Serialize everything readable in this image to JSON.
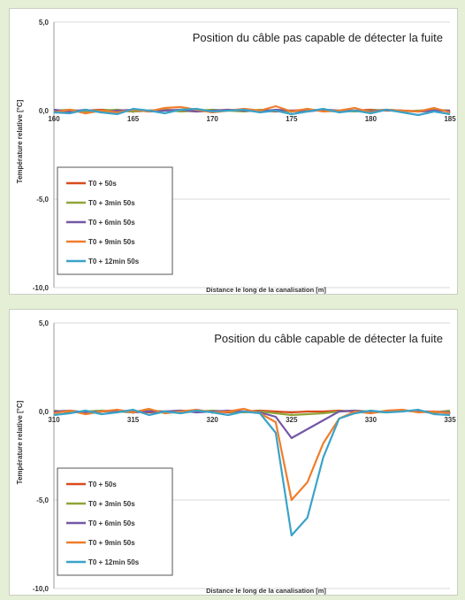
{
  "colors": {
    "background": "#e4efd6",
    "panel": "#ffffff",
    "grid": "#d9d9d9",
    "axis": "#9a9a9a",
    "series": [
      "#d84a1e",
      "#8fa53a",
      "#7457a6",
      "#f07d2c",
      "#3aa3c8"
    ]
  },
  "chart_data": [
    {
      "type": "line",
      "title": "Position du câble pas capable de détecter la fuite",
      "xlabel": "Distance  le long de la canalisation  [m]",
      "ylabel": "Température relative [°C]",
      "xlim": [
        160,
        185
      ],
      "ylim": [
        -10,
        5
      ],
      "x_ticks": [
        "160",
        "165",
        "170",
        "175",
        "180",
        "185"
      ],
      "y_ticks": [
        "5,0",
        "0,0",
        "-5,0",
        "-10,0"
      ],
      "x_tick_values": [
        160,
        165,
        170,
        175,
        180,
        185
      ],
      "y_tick_values": [
        5,
        0,
        -5,
        -10
      ],
      "grid": true,
      "legend_position": "bottom-left",
      "x": [
        160,
        161,
        162,
        163,
        164,
        165,
        166,
        167,
        168,
        169,
        170,
        171,
        172,
        173,
        174,
        175,
        176,
        177,
        178,
        179,
        180,
        181,
        182,
        183,
        184,
        185
      ],
      "series": [
        {
          "name": "T0 + 50s",
          "values": [
            0.0,
            -0.05,
            0.0,
            0.05,
            0.0,
            -0.05,
            0.0,
            0.05,
            0.0,
            -0.05,
            0.0,
            0.05,
            0.0,
            0.0,
            -0.05,
            0.0,
            0.05,
            0.0,
            -0.05,
            0.0,
            0.05,
            0.0,
            0.0,
            -0.05,
            0.0,
            0.0
          ]
        },
        {
          "name": "T0 + 3min 50s",
          "values": [
            0.0,
            0.05,
            -0.05,
            0.0,
            0.05,
            -0.05,
            0.0,
            0.05,
            -0.05,
            0.0,
            0.05,
            0.0,
            -0.05,
            0.05,
            0.0,
            -0.05,
            0.0,
            0.05,
            0.0,
            -0.05,
            0.0,
            0.05,
            -0.05,
            0.0,
            0.05,
            0.0
          ]
        },
        {
          "name": "T0 + 6min 50s",
          "values": [
            0.05,
            -0.05,
            0.05,
            -0.1,
            0.0,
            0.05,
            -0.05,
            0.0,
            0.05,
            -0.05,
            0.0,
            0.05,
            0.0,
            -0.05,
            0.05,
            0.0,
            -0.05,
            0.05,
            0.0,
            0.0,
            -0.05,
            0.05,
            0.0,
            -0.05,
            0.0,
            0.0
          ]
        },
        {
          "name": "T0 + 9min 50s",
          "values": [
            -0.1,
            0.05,
            -0.15,
            0.0,
            -0.1,
            0.05,
            -0.05,
            0.15,
            0.2,
            0.05,
            -0.1,
            0.0,
            0.1,
            0.0,
            0.25,
            -0.05,
            0.1,
            -0.05,
            0.0,
            0.15,
            -0.1,
            0.05,
            0.0,
            -0.05,
            0.15,
            -0.1
          ]
        },
        {
          "name": "T0 + 12min 50s",
          "values": [
            -0.1,
            -0.15,
            0.05,
            -0.1,
            -0.2,
            0.1,
            0.0,
            -0.15,
            0.05,
            0.1,
            -0.05,
            0.0,
            0.05,
            -0.1,
            0.0,
            -0.2,
            -0.05,
            0.1,
            -0.1,
            0.0,
            -0.15,
            0.05,
            -0.1,
            -0.25,
            -0.05,
            -0.2
          ]
        }
      ]
    },
    {
      "type": "line",
      "title": "Position du câble capable de détecter la fuite",
      "xlabel": "Distance  le long de la canalisation  [m]",
      "ylabel": "Température relative [°C]",
      "xlim": [
        310,
        335
      ],
      "ylim": [
        -10,
        5
      ],
      "x_ticks": [
        "310",
        "315",
        "320",
        "325",
        "330",
        "335"
      ],
      "y_ticks": [
        "5,0",
        "0,0",
        "-5,0",
        "-10,0"
      ],
      "x_tick_values": [
        310,
        315,
        320,
        325,
        330,
        335
      ],
      "y_tick_values": [
        5,
        0,
        -5,
        -10
      ],
      "grid": true,
      "legend_position": "bottom-left",
      "x": [
        310,
        311,
        312,
        313,
        314,
        315,
        316,
        317,
        318,
        319,
        320,
        321,
        322,
        323,
        324,
        325,
        326,
        327,
        328,
        329,
        330,
        331,
        332,
        333,
        334,
        335
      ],
      "series": [
        {
          "name": "T0 + 50s",
          "values": [
            0.0,
            0.0,
            -0.05,
            0.0,
            0.05,
            0.0,
            -0.05,
            0.0,
            0.05,
            0.0,
            0.0,
            -0.05,
            0.0,
            0.05,
            0.0,
            -0.05,
            0.0,
            0.0,
            0.05,
            0.0,
            -0.05,
            0.0,
            0.05,
            0.0,
            -0.05,
            0.0
          ]
        },
        {
          "name": "T0 + 3min 50s",
          "values": [
            0.05,
            -0.05,
            0.0,
            0.05,
            0.0,
            -0.05,
            0.05,
            0.0,
            -0.05,
            0.0,
            0.05,
            0.0,
            -0.05,
            0.0,
            -0.1,
            -0.2,
            -0.15,
            -0.1,
            0.0,
            0.05,
            0.0,
            -0.05,
            0.05,
            0.0,
            -0.05,
            0.05
          ]
        },
        {
          "name": "T0 + 6min 50s",
          "values": [
            0.0,
            0.05,
            -0.05,
            0.0,
            0.05,
            -0.05,
            0.0,
            0.0,
            0.05,
            -0.05,
            0.0,
            0.05,
            0.0,
            -0.05,
            -0.3,
            -1.5,
            -1.0,
            -0.5,
            0.0,
            0.05,
            -0.05,
            0.0,
            0.05,
            0.0,
            0.0,
            -0.05
          ]
        },
        {
          "name": "T0 + 9min 50s",
          "values": [
            -0.1,
            0.05,
            -0.15,
            0.0,
            0.1,
            -0.05,
            0.15,
            -0.1,
            0.0,
            0.1,
            -0.05,
            0.0,
            0.15,
            -0.1,
            -0.6,
            -5.0,
            -4.0,
            -1.8,
            -0.4,
            0.0,
            -0.1,
            0.05,
            0.1,
            -0.05,
            0.0,
            -0.1
          ]
        },
        {
          "name": "T0 + 12min 50s",
          "values": [
            -0.2,
            -0.1,
            0.05,
            -0.15,
            -0.05,
            0.1,
            -0.2,
            0.0,
            -0.1,
            0.05,
            -0.05,
            -0.2,
            0.0,
            -0.1,
            -1.2,
            -7.0,
            -6.0,
            -2.6,
            -0.4,
            -0.1,
            0.05,
            -0.05,
            0.0,
            0.1,
            -0.15,
            -0.2
          ]
        }
      ]
    }
  ]
}
